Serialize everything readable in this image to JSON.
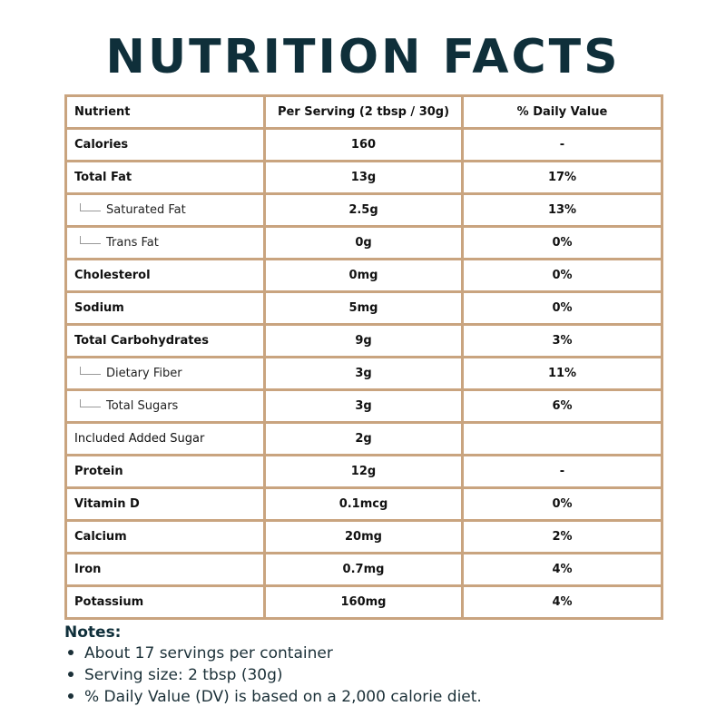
{
  "title": "NUTRITION FACTS",
  "colors": {
    "title": "#0f2f3a",
    "border": "#c9a47f",
    "text": "#111111"
  },
  "table": {
    "headers": {
      "nutrient": "Nutrient",
      "per_serving": "Per Serving (2 tbsp / 30g)",
      "daily_value": "% Daily Value"
    },
    "rows": [
      {
        "nutrient": "Calories",
        "amount": "160",
        "dv": "-",
        "style": "bold"
      },
      {
        "nutrient": "Total Fat",
        "amount": "13g",
        "dv": "17%",
        "style": "bold"
      },
      {
        "nutrient": "Saturated Fat",
        "amount": "2.5g",
        "dv": "13%",
        "style": "sub"
      },
      {
        "nutrient": "Trans Fat",
        "amount": "0g",
        "dv": "0%",
        "style": "sub"
      },
      {
        "nutrient": "Cholesterol",
        "amount": "0mg",
        "dv": "0%",
        "style": "bold"
      },
      {
        "nutrient": "Sodium",
        "amount": "5mg",
        "dv": "0%",
        "style": "bold"
      },
      {
        "nutrient": "Total Carbohydrates",
        "amount": "9g",
        "dv": "3%",
        "style": "bold"
      },
      {
        "nutrient": "Dietary Fiber",
        "amount": "3g",
        "dv": "11%",
        "style": "sub"
      },
      {
        "nutrient": "Total Sugars",
        "amount": "3g",
        "dv": "6%",
        "style": "sub"
      },
      {
        "nutrient": "Included Added Sugar",
        "amount": "2g",
        "dv": "",
        "style": "plain"
      },
      {
        "nutrient": "Protein",
        "amount": "12g",
        "dv": "-",
        "style": "bold"
      },
      {
        "nutrient": "Vitamin D",
        "amount": "0.1mcg",
        "dv": "0%",
        "style": "bold"
      },
      {
        "nutrient": "Calcium",
        "amount": "20mg",
        "dv": "2%",
        "style": "bold"
      },
      {
        "nutrient": "Iron",
        "amount": "0.7mg",
        "dv": "4%",
        "style": "bold"
      },
      {
        "nutrient": "Potassium",
        "amount": "160mg",
        "dv": "4%",
        "style": "bold"
      }
    ]
  },
  "notes": {
    "heading": "Notes:",
    "items": [
      "About 17 servings per container",
      "Serving size: 2 tbsp (30g)",
      "% Daily Value (DV) is based on a 2,000 calorie diet."
    ]
  }
}
